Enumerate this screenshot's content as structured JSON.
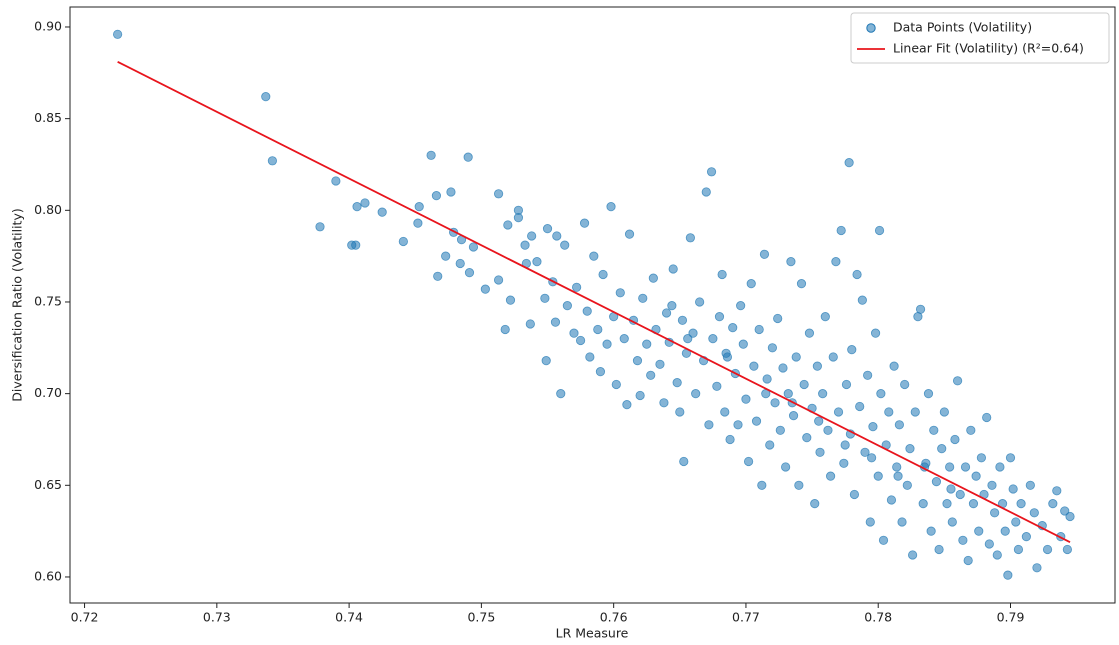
{
  "chart_data": {
    "type": "scatter",
    "xlabel": "LR Measure",
    "ylabel": "Diversification Ratio (Volatility)",
    "xlim": [
      0.7189,
      0.7979
    ],
    "ylim": [
      0.5858,
      0.9109
    ],
    "xticks": [
      0.72,
      0.73,
      0.74,
      0.75,
      0.76,
      0.77,
      0.78,
      0.79
    ],
    "yticks": [
      {
        "value": 0.6,
        "label": "0.60"
      },
      0.65,
      {
        "value": 0.7,
        "label": "0.70"
      },
      0.75,
      {
        "value": 0.8,
        "label": "0.80"
      },
      0.85,
      {
        "value": 0.9,
        "label": "0.90"
      }
    ],
    "legend": "upper right",
    "series": [
      {
        "name": "Data Points (Volatility)",
        "kind": "scatter",
        "color": "#1f77b4",
        "x": [
          0.7225,
          0.7337,
          0.7342,
          0.7378,
          0.739,
          0.7402,
          0.7405,
          0.7406,
          0.7412,
          0.7425,
          0.7441,
          0.7452,
          0.7453,
          0.7462,
          0.7466,
          0.7467,
          0.7473,
          0.7477,
          0.7479,
          0.7484,
          0.7485,
          0.749,
          0.7491,
          0.7494,
          0.7503,
          0.7513,
          0.7513,
          0.7518,
          0.752,
          0.7522,
          0.7528,
          0.7528,
          0.7533,
          0.7534,
          0.7537,
          0.7538,
          0.7542,
          0.7548,
          0.7549,
          0.755,
          0.7554,
          0.7556,
          0.7557,
          0.756,
          0.7563,
          0.7565,
          0.757,
          0.7572,
          0.7575,
          0.7578,
          0.758,
          0.7582,
          0.7585,
          0.7588,
          0.759,
          0.7592,
          0.7595,
          0.7598,
          0.76,
          0.7602,
          0.7605,
          0.7608,
          0.761,
          0.7612,
          0.7615,
          0.7618,
          0.762,
          0.7622,
          0.7625,
          0.7628,
          0.763,
          0.7632,
          0.7635,
          0.7638,
          0.764,
          0.7642,
          0.7645,
          0.7648,
          0.765,
          0.7652,
          0.7653,
          0.7655,
          0.7658,
          0.766,
          0.7662,
          0.7665,
          0.7668,
          0.767,
          0.7672,
          0.7674,
          0.7675,
          0.7678,
          0.768,
          0.7682,
          0.7684,
          0.7686,
          0.7688,
          0.769,
          0.7692,
          0.7694,
          0.7696,
          0.7698,
          0.77,
          0.7702,
          0.7704,
          0.7706,
          0.7708,
          0.771,
          0.7712,
          0.7714,
          0.7716,
          0.7718,
          0.772,
          0.7722,
          0.7724,
          0.7726,
          0.7728,
          0.773,
          0.7732,
          0.7734,
          0.7736,
          0.7738,
          0.774,
          0.7742,
          0.7744,
          0.7746,
          0.7748,
          0.775,
          0.7752,
          0.7754,
          0.7756,
          0.7758,
          0.776,
          0.7762,
          0.7764,
          0.7766,
          0.7768,
          0.777,
          0.7772,
          0.7774,
          0.7776,
          0.7778,
          0.7779,
          0.778,
          0.7782,
          0.7784,
          0.7786,
          0.7788,
          0.779,
          0.7792,
          0.7794,
          0.7796,
          0.7798,
          0.78,
          0.7801,
          0.7802,
          0.7804,
          0.7806,
          0.7808,
          0.781,
          0.7812,
          0.7814,
          0.7816,
          0.7818,
          0.782,
          0.7822,
          0.7824,
          0.7826,
          0.7828,
          0.783,
          0.7832,
          0.7834,
          0.7836,
          0.7838,
          0.784,
          0.7842,
          0.7844,
          0.7846,
          0.7848,
          0.785,
          0.7852,
          0.7854,
          0.7856,
          0.7858,
          0.786,
          0.7862,
          0.7864,
          0.7866,
          0.7868,
          0.787,
          0.7872,
          0.7874,
          0.7876,
          0.7878,
          0.788,
          0.7882,
          0.7884,
          0.7886,
          0.7888,
          0.789,
          0.7892,
          0.7894,
          0.7896,
          0.7898,
          0.79,
          0.7902,
          0.7904,
          0.7906,
          0.7908,
          0.7912,
          0.7915,
          0.7918,
          0.792,
          0.7924,
          0.7928,
          0.7932,
          0.7935,
          0.7938,
          0.7941,
          0.7943,
          0.7945,
          0.7644,
          0.7656,
          0.7685,
          0.7715,
          0.7735,
          0.7755,
          0.7775,
          0.7795,
          0.7815,
          0.7835,
          0.7855
        ],
        "values": [
          0.896,
          0.862,
          0.827,
          0.791,
          0.816,
          0.781,
          0.781,
          0.802,
          0.804,
          0.799,
          0.783,
          0.793,
          0.802,
          0.83,
          0.808,
          0.764,
          0.775,
          0.81,
          0.788,
          0.771,
          0.784,
          0.829,
          0.766,
          0.78,
          0.757,
          0.809,
          0.762,
          0.735,
          0.792,
          0.751,
          0.8,
          0.796,
          0.781,
          0.771,
          0.738,
          0.786,
          0.772,
          0.752,
          0.718,
          0.79,
          0.761,
          0.739,
          0.786,
          0.7,
          0.781,
          0.748,
          0.733,
          0.758,
          0.729,
          0.793,
          0.745,
          0.72,
          0.775,
          0.735,
          0.712,
          0.765,
          0.727,
          0.802,
          0.742,
          0.705,
          0.755,
          0.73,
          0.694,
          0.787,
          0.74,
          0.718,
          0.699,
          0.752,
          0.727,
          0.71,
          0.763,
          0.735,
          0.716,
          0.695,
          0.744,
          0.728,
          0.768,
          0.706,
          0.69,
          0.74,
          0.663,
          0.722,
          0.785,
          0.733,
          0.7,
          0.75,
          0.718,
          0.81,
          0.683,
          0.821,
          0.73,
          0.704,
          0.742,
          0.765,
          0.69,
          0.72,
          0.675,
          0.736,
          0.711,
          0.683,
          0.748,
          0.727,
          0.697,
          0.663,
          0.76,
          0.715,
          0.685,
          0.735,
          0.65,
          0.776,
          0.708,
          0.672,
          0.725,
          0.695,
          0.741,
          0.68,
          0.714,
          0.66,
          0.7,
          0.772,
          0.688,
          0.72,
          0.65,
          0.76,
          0.705,
          0.676,
          0.733,
          0.692,
          0.64,
          0.715,
          0.668,
          0.7,
          0.742,
          0.68,
          0.655,
          0.72,
          0.772,
          0.69,
          0.789,
          0.662,
          0.705,
          0.826,
          0.678,
          0.724,
          0.645,
          0.765,
          0.693,
          0.751,
          0.668,
          0.71,
          0.63,
          0.682,
          0.733,
          0.655,
          0.789,
          0.7,
          0.62,
          0.672,
          0.69,
          0.642,
          0.715,
          0.66,
          0.683,
          0.63,
          0.705,
          0.65,
          0.67,
          0.612,
          0.69,
          0.742,
          0.746,
          0.64,
          0.662,
          0.7,
          0.625,
          0.68,
          0.652,
          0.615,
          0.67,
          0.69,
          0.64,
          0.66,
          0.63,
          0.675,
          0.707,
          0.645,
          0.62,
          0.66,
          0.609,
          0.68,
          0.64,
          0.655,
          0.625,
          0.665,
          0.645,
          0.687,
          0.618,
          0.65,
          0.635,
          0.612,
          0.66,
          0.64,
          0.625,
          0.601,
          0.665,
          0.648,
          0.63,
          0.615,
          0.64,
          0.622,
          0.65,
          0.635,
          0.605,
          0.628,
          0.615,
          0.64,
          0.647,
          0.622,
          0.636,
          0.615,
          0.633,
          0.748,
          0.73,
          0.722,
          0.7,
          0.695,
          0.685,
          0.672,
          0.665,
          0.655,
          0.66,
          0.648
        ]
      },
      {
        "name": "Linear Fit (Volatility) (R²=0.64)",
        "kind": "line",
        "color": "#e8141c",
        "x": [
          0.7225,
          0.7945
        ],
        "values": [
          0.881,
          0.619
        ]
      }
    ]
  }
}
